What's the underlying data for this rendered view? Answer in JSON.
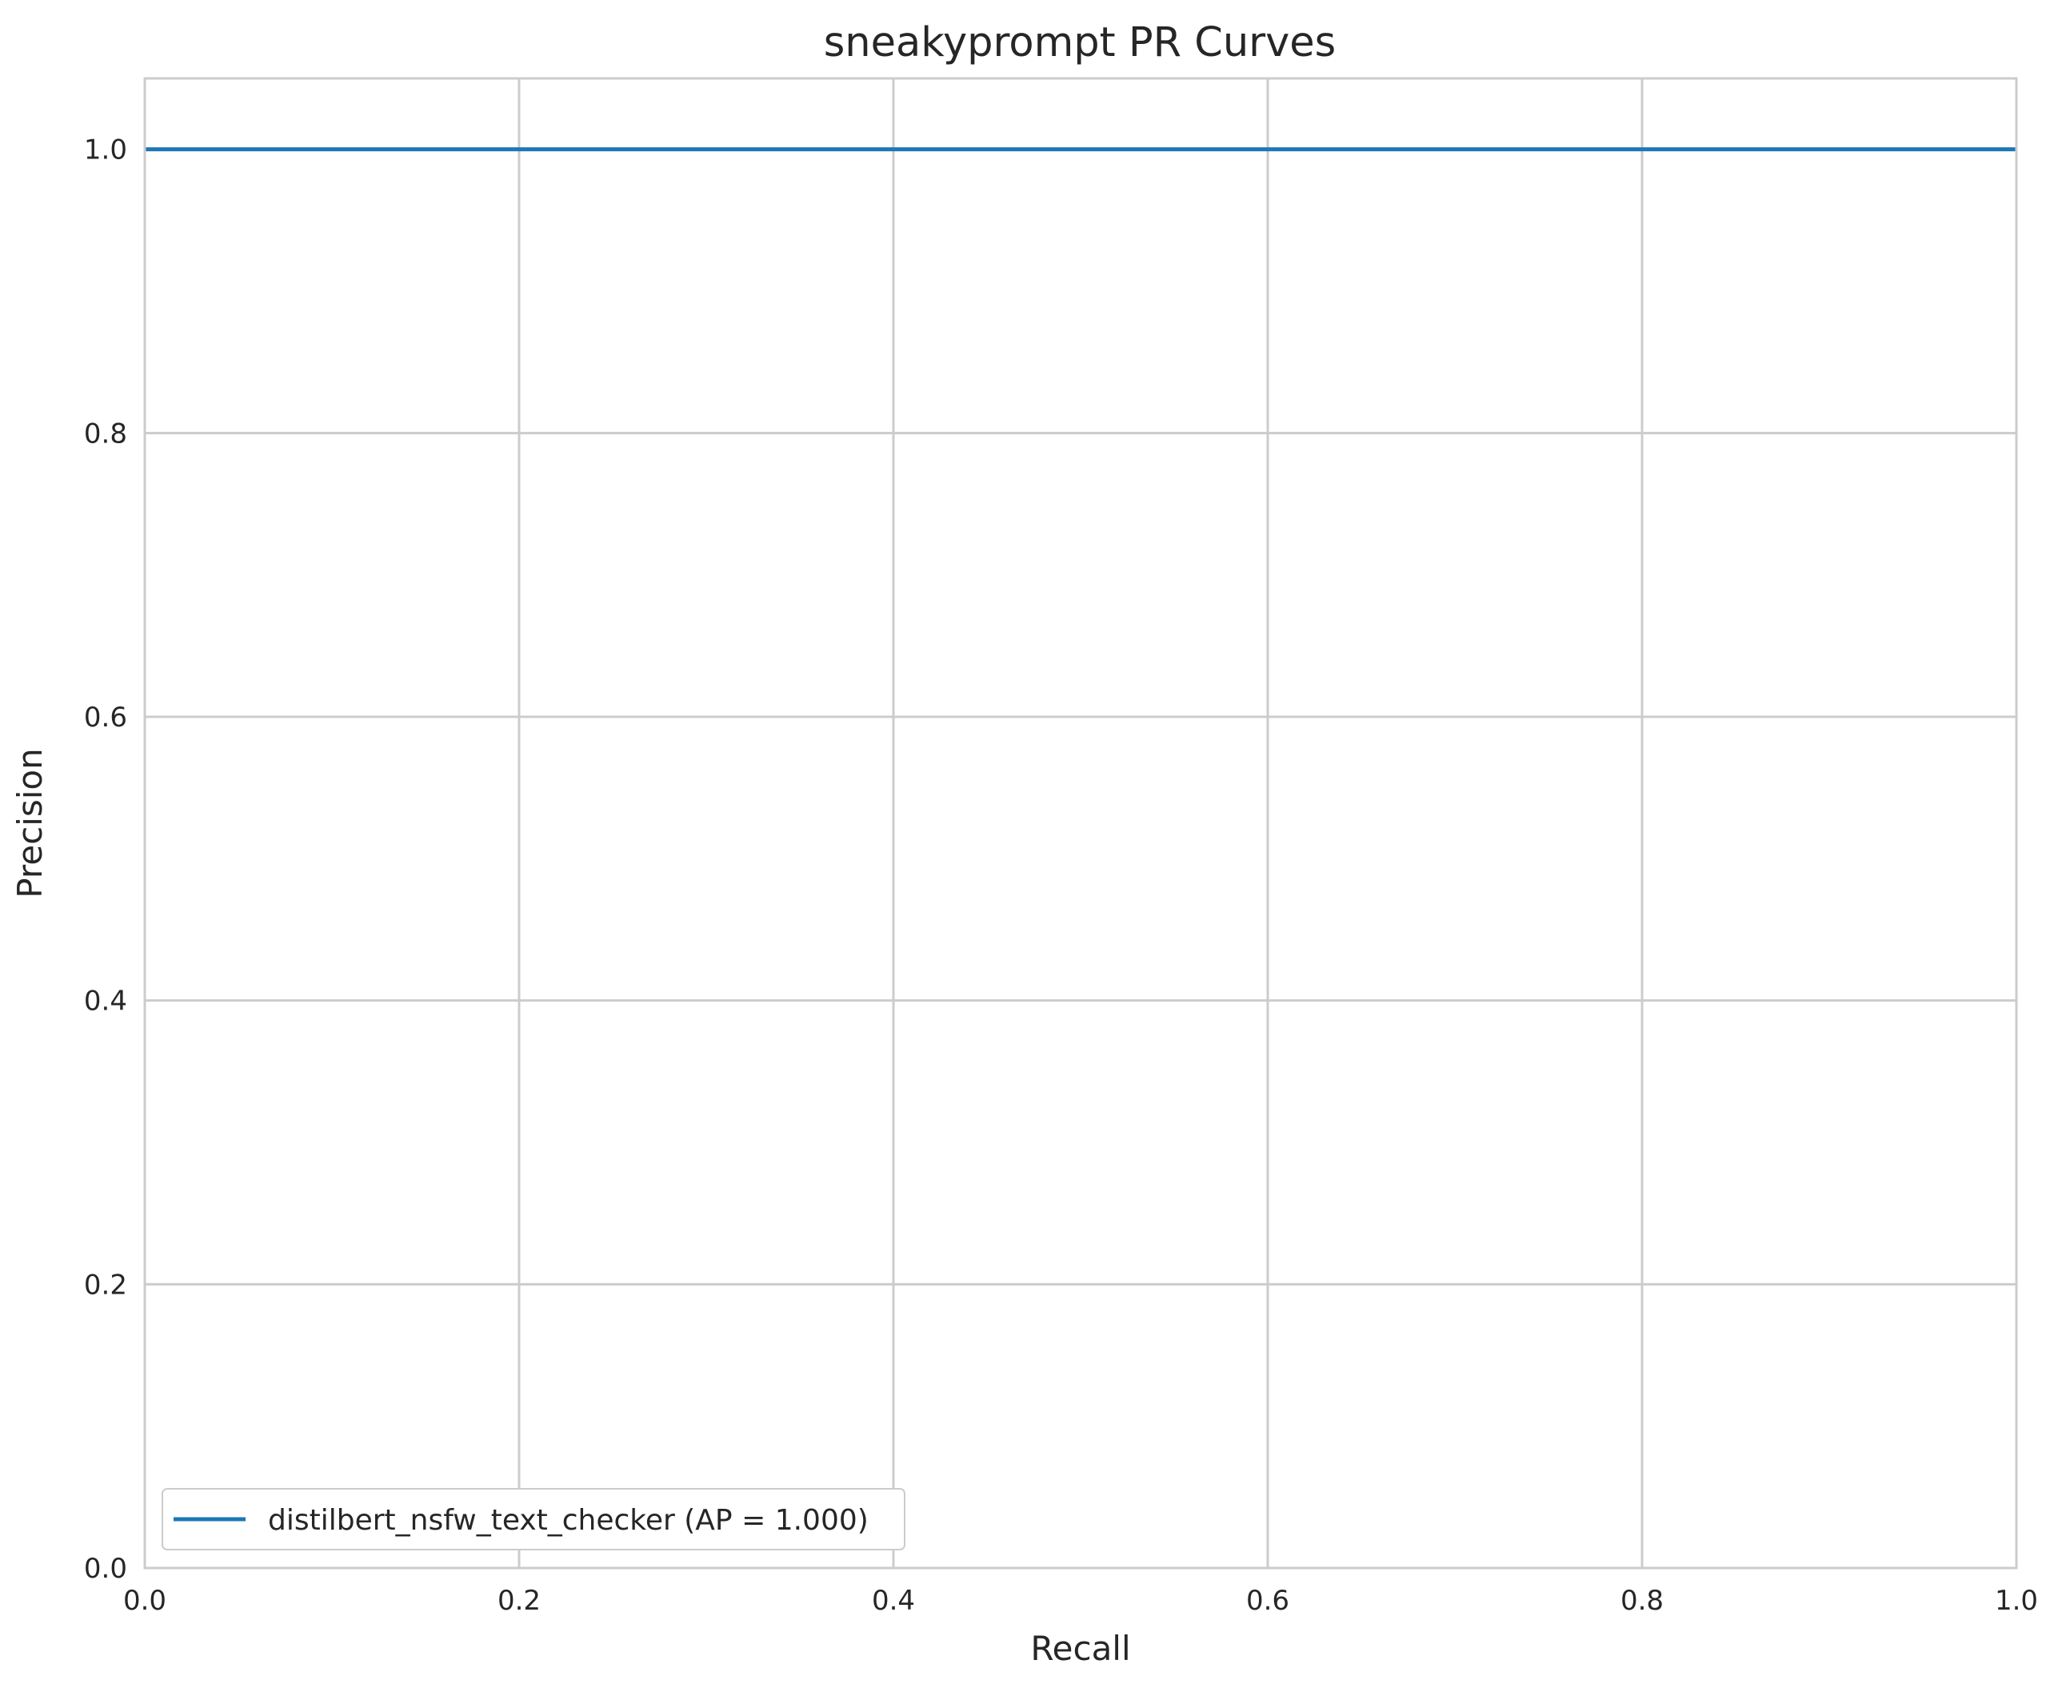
{
  "chart_data": {
    "type": "line",
    "title": "sneakyprompt PR Curves",
    "xlabel": "Recall",
    "ylabel": "Precision",
    "xlim": [
      0.0,
      1.0
    ],
    "ylim": [
      0.0,
      1.05
    ],
    "xticks": [
      0.0,
      0.2,
      0.4,
      0.6,
      0.8,
      1.0
    ],
    "yticks": [
      0.0,
      0.2,
      0.4,
      0.6,
      0.8,
      1.0
    ],
    "xtick_labels": [
      "0.0",
      "0.2",
      "0.4",
      "0.6",
      "0.8",
      "1.0"
    ],
    "ytick_labels": [
      "0.0",
      "0.2",
      "0.4",
      "0.6",
      "0.8",
      "1.0"
    ],
    "grid": true,
    "legend_position": "lower-left",
    "series": [
      {
        "name": "distilbert_nsfw_text_checker (AP = 1.000)",
        "color": "#1f77b4",
        "x": [
          0.0,
          1.0
        ],
        "y": [
          1.0,
          1.0
        ]
      }
    ]
  }
}
